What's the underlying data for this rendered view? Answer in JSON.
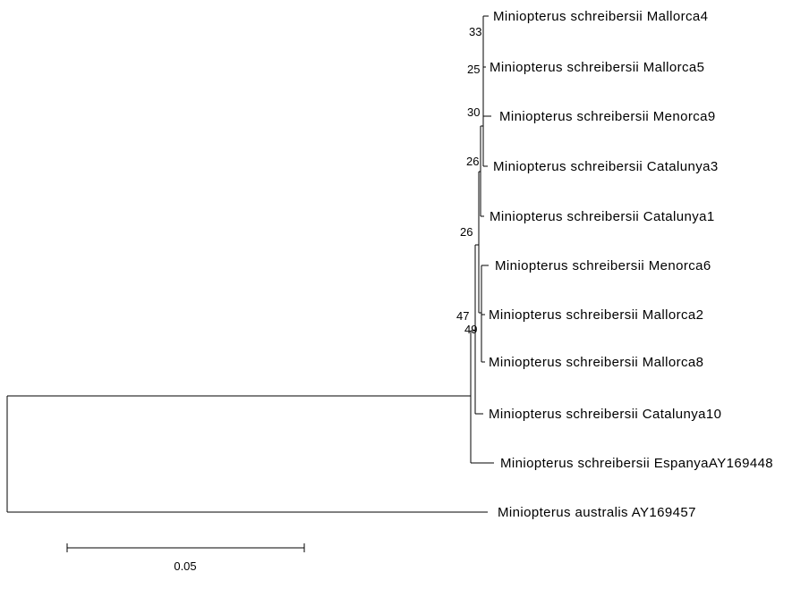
{
  "taxa": [
    "Miniopterus schreibersii Mallorca4",
    "Miniopterus schreibersii Mallorca5",
    "Miniopterus schreibersii Menorca9",
    "Miniopterus schreibersii Catalunya3",
    "Miniopterus schreibersii Catalunya1",
    "Miniopterus schreibersii Menorca6",
    "Miniopterus schreibersii Mallorca2",
    "Miniopterus schreibersii Mallorca8",
    "Miniopterus schreibersii Catalunya10",
    "Miniopterus schreibersii EspanyaAY169448",
    "Miniopterus australis AY169457"
  ],
  "bootstrap": [
    "33",
    "25",
    "30",
    "26",
    "26",
    "47",
    "49"
  ],
  "scale_bar": {
    "label": "0.05"
  }
}
